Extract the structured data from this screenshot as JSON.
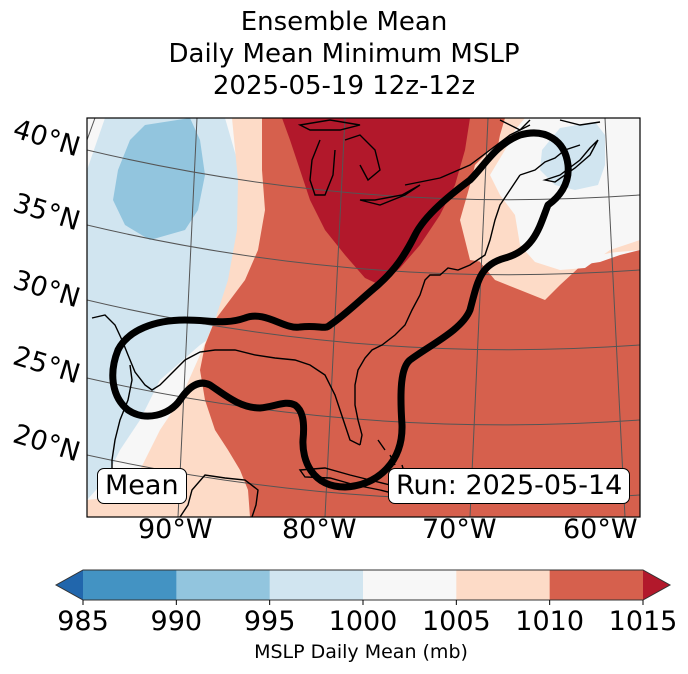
{
  "title": {
    "line1": "Ensemble Mean",
    "line2": "Daily Mean Minimum MSLP",
    "line3": "2025-05-19 12z-12z"
  },
  "map": {
    "projection": "lambert-conformal",
    "lat_labels": [
      "40°N",
      "35°N",
      "30°N",
      "25°N",
      "20°N"
    ],
    "lon_labels": [
      "90°W",
      "80°W",
      "70°W",
      "60°W"
    ],
    "left_box": "Mean",
    "right_box": "Run: 2025-05-14",
    "contour_color": "#000000",
    "coastline_color": "#000000",
    "gridline_color": "#555555"
  },
  "colorbar": {
    "label": "MSLP Daily Mean (mb)",
    "ticks": [
      "985",
      "990",
      "995",
      "1000",
      "1005",
      "1010",
      "1015"
    ],
    "extend": "both",
    "bins": [
      {
        "range": "<985",
        "color": "#2166ac"
      },
      {
        "range": "985-990",
        "color": "#4393c3"
      },
      {
        "range": "990-995",
        "color": "#92c5de"
      },
      {
        "range": "995-1000",
        "color": "#d1e5f0"
      },
      {
        "range": "1000-1005",
        "color": "#f7f7f7"
      },
      {
        "range": "1005-1010",
        "color": "#fddbc7"
      },
      {
        "range": "1010-1015",
        "color": "#d6604d"
      },
      {
        "range": ">1015",
        "color": "#b2182b"
      }
    ]
  },
  "chart_data": {
    "type": "heatmap",
    "title": "Ensemble Mean / Daily Mean Minimum MSLP / 2025-05-19 12z-12z",
    "variable": "MSLP Daily Mean (mb)",
    "levels": [
      985,
      990,
      995,
      1000,
      1005,
      1010,
      1015
    ],
    "extend": "both",
    "lat_range": [
      15,
      42
    ],
    "lon_range": [
      -97,
      -58
    ],
    "lat_ticks": [
      20,
      25,
      30,
      35,
      40
    ],
    "lon_ticks": [
      -90,
      -80,
      -70,
      -60
    ],
    "regions": [
      {
        "name": "high-great-lakes",
        "value_range": ">1015",
        "description": "High pressure centered over Great Lakes / Ohio Valley"
      },
      {
        "name": "ridge-southeast",
        "value_range": "1010-1015",
        "description": "Broad ridge over eastern US, Gulf, Florida, western Atlantic"
      },
      {
        "name": "low-plains",
        "value_range": "990-995",
        "description": "Lower pressure over southern Plains (~35-40°N, 93-88°W)"
      },
      {
        "name": "north-atlantic-weak",
        "value_range": "995-1000",
        "description": "Slightly lower pressure near Nova Scotia"
      }
    ],
    "contour": {
      "description": "Thick black outlined region spanning Gulf Coast, Florida, Southeast coast to New England"
    },
    "annotations": [
      "Mean",
      "Run: 2025-05-14"
    ]
  }
}
